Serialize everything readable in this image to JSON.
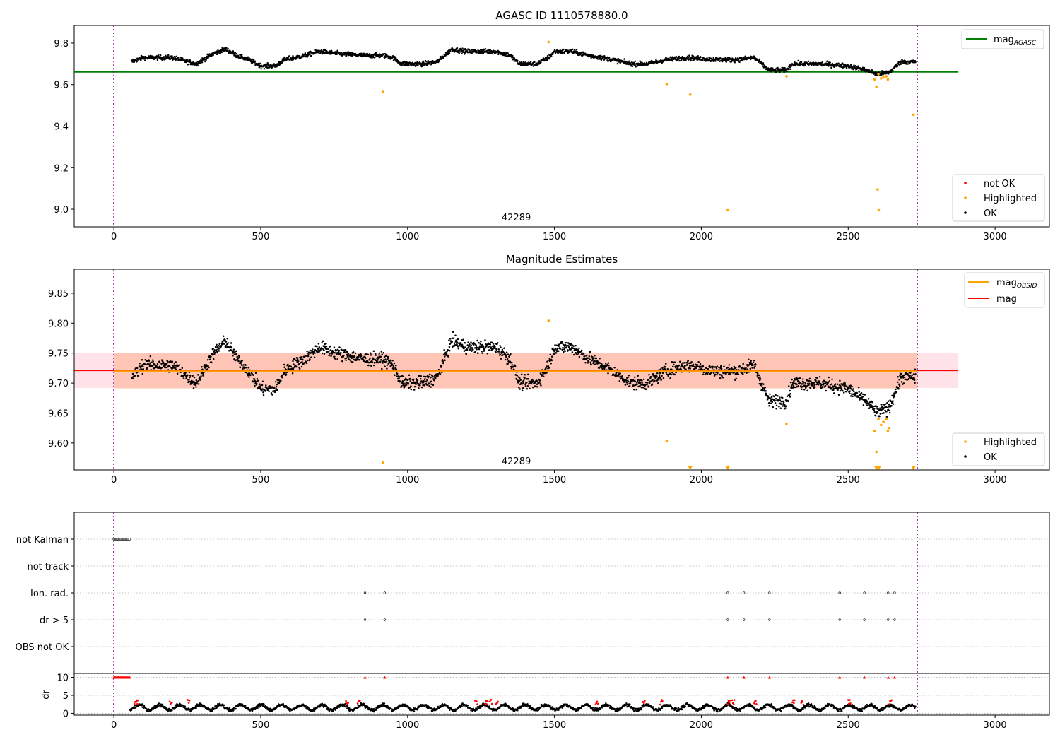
{
  "chart_data": [
    {
      "type": "scatter",
      "title": "AGASC ID 1110578880.0",
      "xlim": [
        -135,
        3185
      ],
      "ylim": [
        8.915,
        9.885
      ],
      "x_ticks": [
        0,
        500,
        1000,
        1500,
        2000,
        2500,
        3000
      ],
      "y_ticks": [
        9.0,
        9.2,
        9.4,
        9.6,
        9.8
      ],
      "obsid_label": "42289",
      "obsid_label_x": 1370,
      "obsid_boundaries": [
        0,
        2735
      ],
      "reference_line": {
        "name": "mag_AGASC",
        "value": 9.661,
        "x": [
          -135,
          2875
        ],
        "color": "#008000"
      },
      "series": [
        {
          "name": "OK",
          "color": "#000000",
          "x_range": [
            60,
            2730
          ],
          "trend": [
            [
              60,
              9.71
            ],
            [
              100,
              9.73
            ],
            [
              200,
              9.73
            ],
            [
              280,
              9.7
            ],
            [
              340,
              9.75
            ],
            [
              380,
              9.77
            ],
            [
              420,
              9.74
            ],
            [
              460,
              9.72
            ],
            [
              500,
              9.69
            ],
            [
              550,
              9.69
            ],
            [
              580,
              9.72
            ],
            [
              650,
              9.74
            ],
            [
              700,
              9.76
            ],
            [
              760,
              9.75
            ],
            [
              850,
              9.74
            ],
            [
              920,
              9.74
            ],
            [
              950,
              9.73
            ],
            [
              980,
              9.7
            ],
            [
              1050,
              9.7
            ],
            [
              1100,
              9.71
            ],
            [
              1150,
              9.77
            ],
            [
              1200,
              9.76
            ],
            [
              1300,
              9.76
            ],
            [
              1350,
              9.74
            ],
            [
              1380,
              9.7
            ],
            [
              1440,
              9.7
            ],
            [
              1480,
              9.73
            ],
            [
              1500,
              9.76
            ],
            [
              1560,
              9.76
            ],
            [
              1620,
              9.74
            ],
            [
              1700,
              9.72
            ],
            [
              1760,
              9.7
            ],
            [
              1820,
              9.7
            ],
            [
              1880,
              9.72
            ],
            [
              1950,
              9.73
            ],
            [
              2050,
              9.72
            ],
            [
              2120,
              9.72
            ],
            [
              2180,
              9.73
            ],
            [
              2230,
              9.67
            ],
            [
              2290,
              9.67
            ],
            [
              2310,
              9.7
            ],
            [
              2400,
              9.7
            ],
            [
              2500,
              9.69
            ],
            [
              2560,
              9.67
            ],
            [
              2600,
              9.65
            ],
            [
              2640,
              9.66
            ],
            [
              2680,
              9.71
            ],
            [
              2730,
              9.71
            ]
          ]
        },
        {
          "name": "Highlighted",
          "color": "#ffa500",
          "points": [
            [
              916,
              9.565
            ],
            [
              1480,
              9.805
            ],
            [
              1882,
              9.603
            ],
            [
              1962,
              9.552
            ],
            [
              2090,
              8.995
            ],
            [
              2290,
              9.64
            ],
            [
              2590,
              9.625
            ],
            [
              2596,
              9.59
            ],
            [
              2603,
              9.65
            ],
            [
              2600,
              9.095
            ],
            [
              2604,
              8.995
            ],
            [
              2612,
              9.63
            ],
            [
              2620,
              9.635
            ],
            [
              2630,
              9.64
            ],
            [
              2635,
              9.625
            ],
            [
              2722,
              9.455
            ]
          ]
        },
        {
          "name": "not OK",
          "color": "#ff0000",
          "points": []
        }
      ],
      "legend_upper": {
        "entries": [
          {
            "label": "mag",
            "subscript": "AGASC",
            "color": "#008000"
          }
        ],
        "placement": "upper right"
      },
      "legend_lower": {
        "entries": [
          {
            "label": "not OK",
            "color": "#ff0000"
          },
          {
            "label": "Highlighted",
            "color": "#ffa500"
          },
          {
            "label": "OK",
            "color": "#000000"
          }
        ],
        "placement": "lower right"
      }
    },
    {
      "type": "scatter",
      "title": "Magnitude Estimates",
      "xlim": [
        -135,
        3185
      ],
      "ylim": [
        9.555,
        9.89
      ],
      "x_ticks": [
        0,
        500,
        1000,
        1500,
        2000,
        2500,
        3000
      ],
      "y_ticks": [
        9.6,
        9.65,
        9.7,
        9.75,
        9.8,
        9.85
      ],
      "y_tick_labels": [
        "9.60",
        "9.65",
        "9.70",
        "9.75",
        "9.80",
        "9.85"
      ],
      "obsid_label": "42289",
      "obsid_label_x": 1370,
      "obsid_boundaries": [
        0,
        2735
      ],
      "mag_line": {
        "name": "mag",
        "value": 9.721,
        "x": [
          -135,
          2875
        ],
        "color": "#ff0000",
        "band": [
          9.692,
          9.75
        ],
        "band_color": "#ffc0cb"
      },
      "mag_obsid_line": {
        "name": "mag_OBSID",
        "value": 9.72,
        "x": [
          0,
          2735
        ],
        "color": "#ffa500",
        "band": [
          9.691,
          9.75
        ],
        "band_color": "#ffa07a"
      },
      "series": [
        {
          "name": "OK",
          "color": "#000000",
          "x_range": [
            60,
            2730
          ],
          "trend": [
            [
              60,
              9.71
            ],
            [
              100,
              9.73
            ],
            [
              200,
              9.73
            ],
            [
              280,
              9.7
            ],
            [
              340,
              9.75
            ],
            [
              380,
              9.77
            ],
            [
              420,
              9.74
            ],
            [
              460,
              9.72
            ],
            [
              500,
              9.69
            ],
            [
              550,
              9.69
            ],
            [
              580,
              9.72
            ],
            [
              650,
              9.74
            ],
            [
              700,
              9.76
            ],
            [
              760,
              9.75
            ],
            [
              850,
              9.74
            ],
            [
              920,
              9.74
            ],
            [
              950,
              9.73
            ],
            [
              980,
              9.7
            ],
            [
              1050,
              9.7
            ],
            [
              1100,
              9.71
            ],
            [
              1150,
              9.77
            ],
            [
              1200,
              9.76
            ],
            [
              1300,
              9.76
            ],
            [
              1350,
              9.74
            ],
            [
              1380,
              9.7
            ],
            [
              1440,
              9.7
            ],
            [
              1480,
              9.73
            ],
            [
              1500,
              9.76
            ],
            [
              1560,
              9.76
            ],
            [
              1620,
              9.74
            ],
            [
              1700,
              9.72
            ],
            [
              1760,
              9.7
            ],
            [
              1820,
              9.7
            ],
            [
              1880,
              9.72
            ],
            [
              1950,
              9.73
            ],
            [
              2050,
              9.72
            ],
            [
              2120,
              9.72
            ],
            [
              2180,
              9.73
            ],
            [
              2230,
              9.67
            ],
            [
              2290,
              9.67
            ],
            [
              2310,
              9.7
            ],
            [
              2400,
              9.7
            ],
            [
              2500,
              9.69
            ],
            [
              2560,
              9.67
            ],
            [
              2600,
              9.65
            ],
            [
              2640,
              9.66
            ],
            [
              2680,
              9.71
            ],
            [
              2730,
              9.71
            ]
          ]
        },
        {
          "name": "Highlighted",
          "color": "#ffa500",
          "points": [
            [
              916,
              9.567
            ],
            [
              1480,
              9.804
            ],
            [
              1882,
              9.603
            ],
            [
              2290,
              9.632
            ],
            [
              2590,
              9.62
            ],
            [
              2596,
              9.585
            ],
            [
              2603,
              9.64
            ],
            [
              2612,
              9.63
            ],
            [
              2620,
              9.635
            ],
            [
              2630,
              9.64
            ],
            [
              2635,
              9.62
            ],
            [
              2640,
              9.625
            ]
          ],
          "below_axis_x": [
            1962,
            2090,
            2596,
            2604,
            2722
          ]
        }
      ],
      "legend_upper": {
        "entries": [
          {
            "label": "mag",
            "subscript": "OBSID",
            "color": "#ffa500"
          },
          {
            "label": "mag",
            "color": "#ff0000"
          }
        ],
        "placement": "upper right"
      },
      "legend_lower": {
        "entries": [
          {
            "label": "Highlighted",
            "color": "#ffa500"
          },
          {
            "label": "OK",
            "color": "#000000"
          }
        ],
        "placement": "lower right"
      }
    },
    {
      "type": "scatter",
      "title": "",
      "xlim": [
        -135,
        3185
      ],
      "x_ticks": [
        0,
        500,
        1000,
        1500,
        2000,
        2500,
        3000
      ],
      "flag_rows": [
        {
          "label": "not Kalman",
          "x_range": [
            0,
            55
          ]
        },
        {
          "label": "not track",
          "x": []
        },
        {
          "label": "Ion. rad.",
          "x": [
            855,
            922,
            2090,
            2145,
            2232,
            2471,
            2555,
            2636,
            2658
          ]
        },
        {
          "label": "dr > 5",
          "x": [
            855,
            922,
            2090,
            2145,
            2232,
            2471,
            2555,
            2636,
            2658
          ]
        },
        {
          "label": "OBS not OK",
          "x": []
        }
      ],
      "dr": {
        "ylabel": "dr",
        "ylim": [
          -0.5,
          10.5
        ],
        "y_ticks": [
          0,
          5,
          10
        ],
        "clip_value": 10,
        "clipped_x": [
          855,
          922,
          2090,
          2145,
          2232,
          2471,
          2555,
          2636,
          2658
        ],
        "clipped_x_range": [
          0,
          55
        ],
        "scatter_x_range": [
          55,
          2730
        ],
        "scatter_y_range": [
          0,
          3.3
        ],
        "red_highlight_x": [
          70,
          75,
          190,
          250,
          790,
          830,
          1230,
          1265,
          1280,
          1300,
          1640,
          1800,
          1860,
          2090,
          2105,
          2180,
          2310,
          2340,
          2500,
          2640
        ]
      },
      "obsid_boundaries": [
        0,
        2735
      ]
    }
  ]
}
